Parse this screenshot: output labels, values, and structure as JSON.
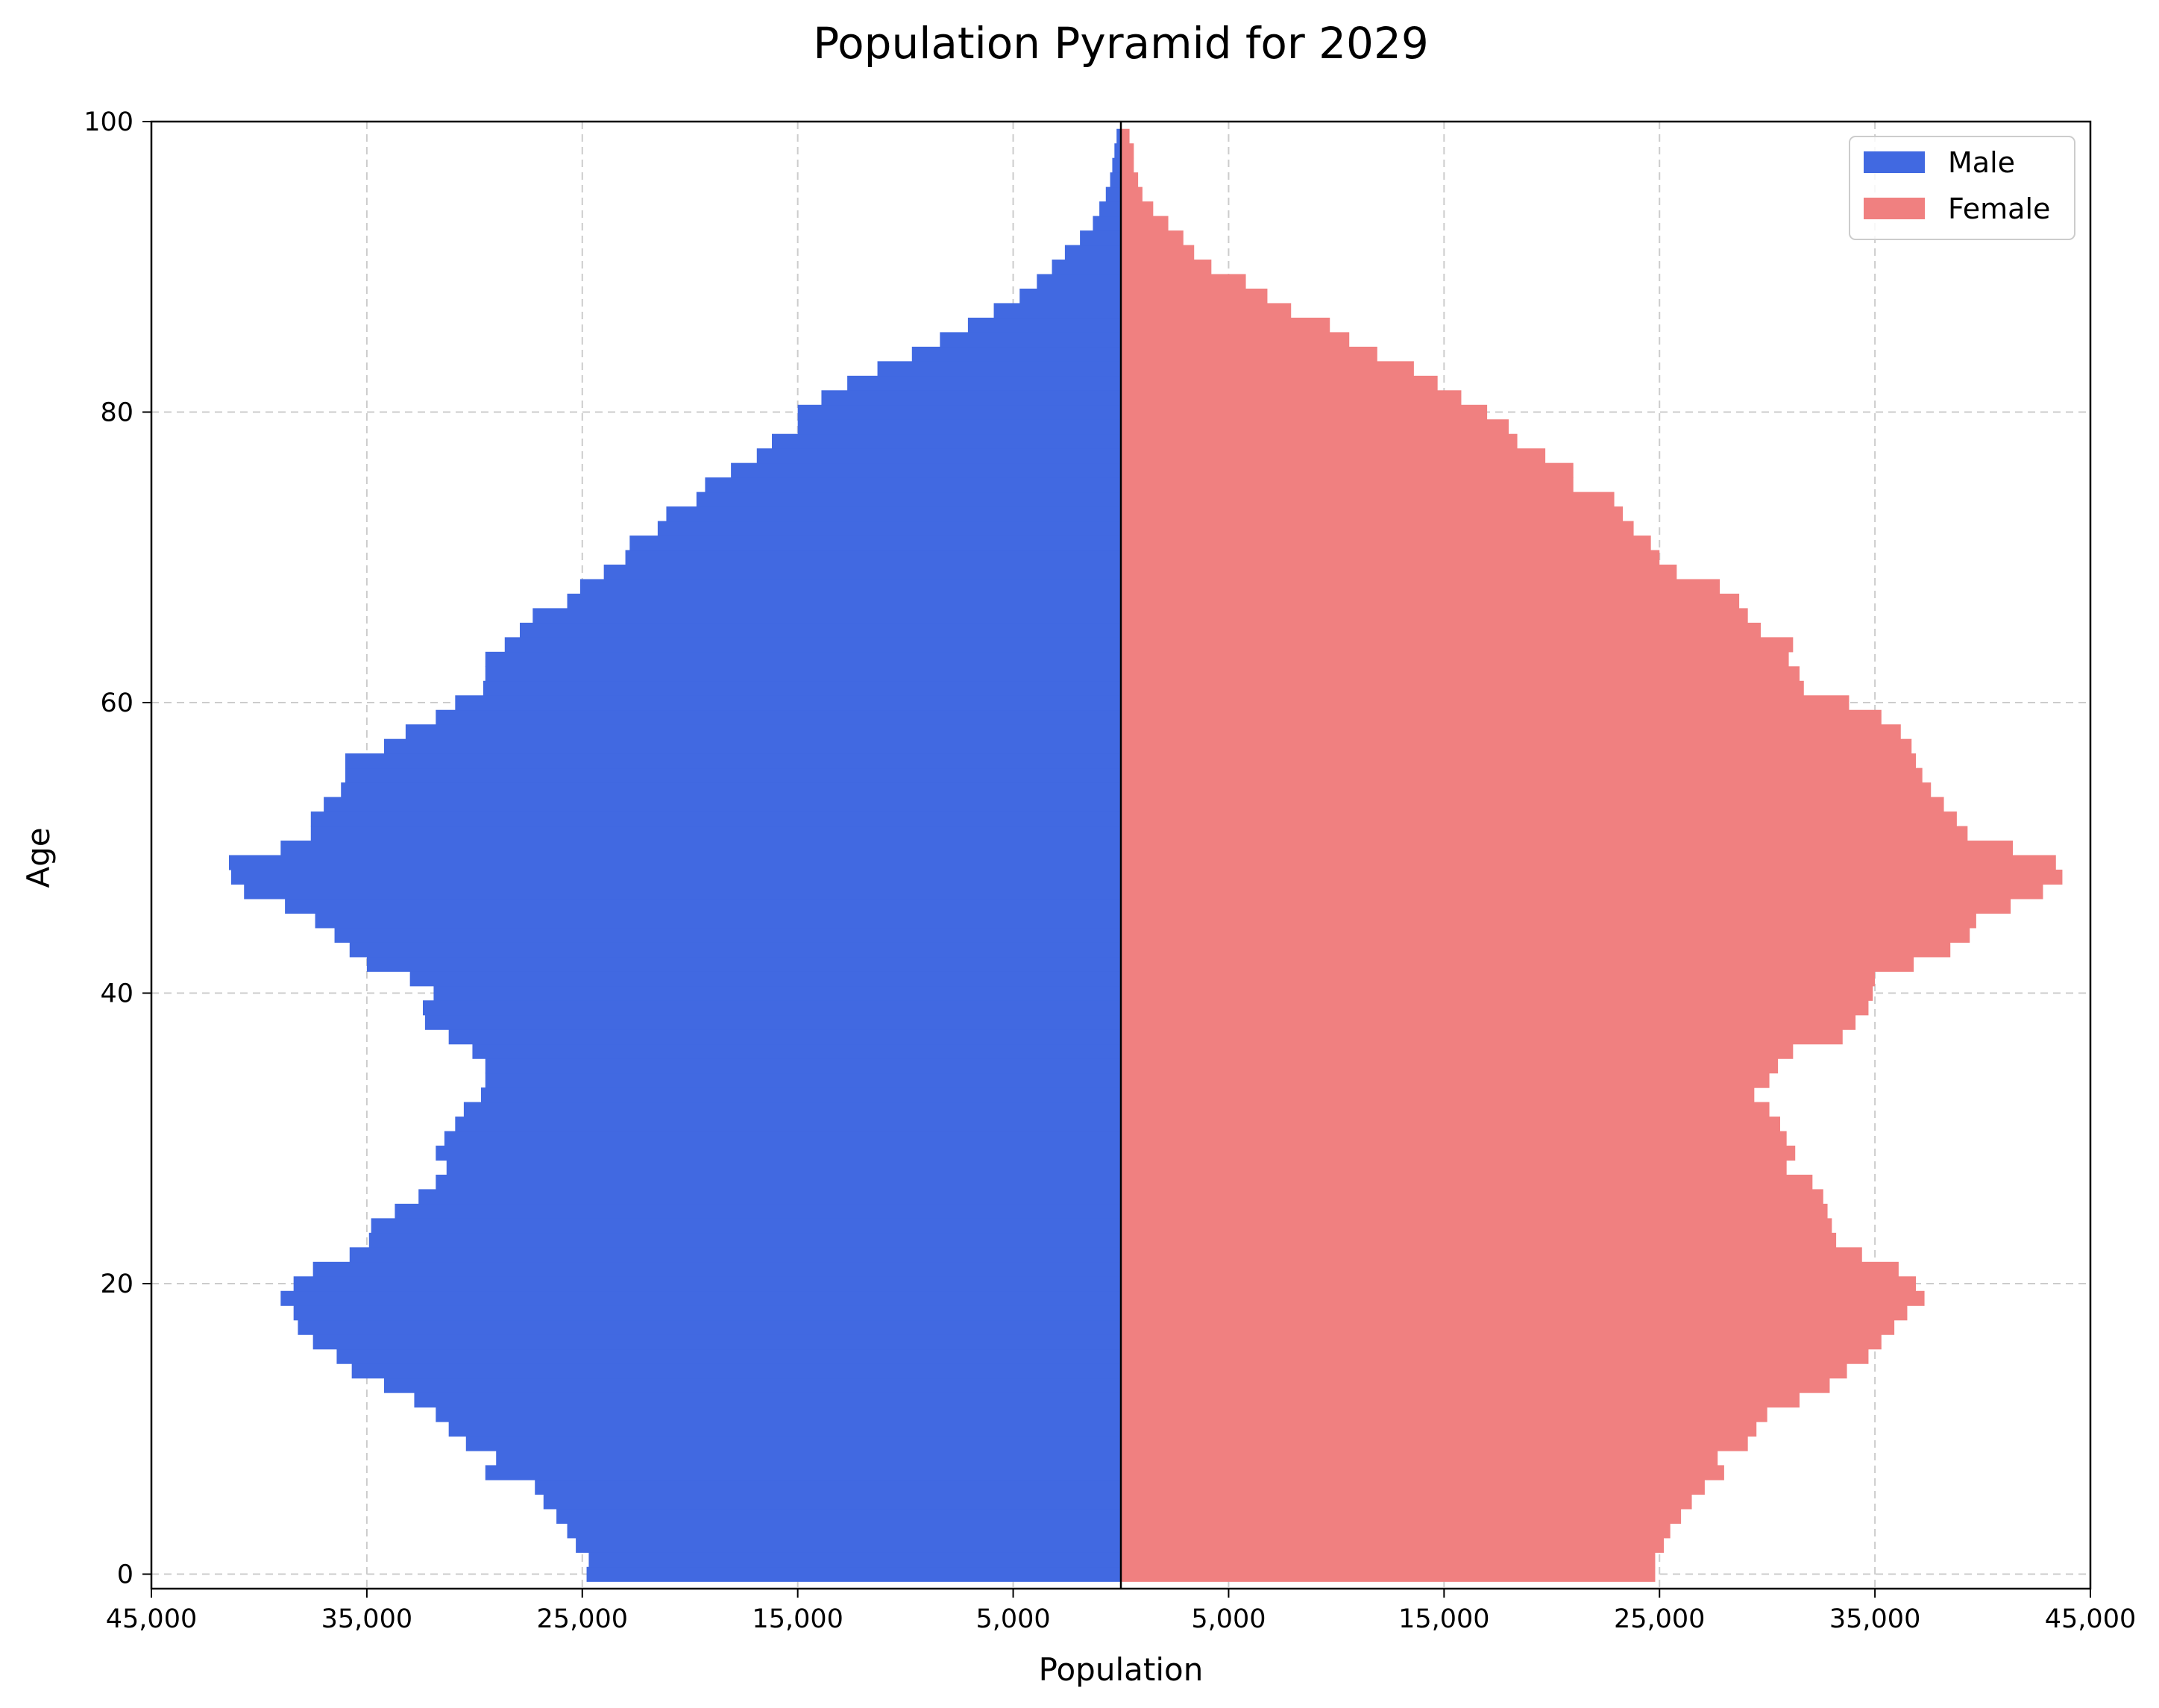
{
  "chart_data": {
    "type": "bar",
    "orientation": "horizontal",
    "title": "Population Pyramid for 2029",
    "xlabel": "Population",
    "ylabel": "Age",
    "xlim": [
      -45000,
      45000
    ],
    "ylim": [
      -1,
      100
    ],
    "x_ticks": [
      -45000,
      -35000,
      -25000,
      -15000,
      -5000,
      5000,
      15000,
      25000,
      35000,
      45000
    ],
    "x_tick_labels": [
      "45,000",
      "35,000",
      "25,000",
      "15,000",
      "5,000",
      "5,000",
      "15,000",
      "25,000",
      "35,000",
      "45,000"
    ],
    "y_ticks": [
      0,
      20,
      40,
      60,
      80,
      100
    ],
    "y_tick_labels": [
      "0",
      "20",
      "40",
      "60",
      "80",
      "100"
    ],
    "grid": true,
    "legend_position": "top-right",
    "ages": [
      0,
      1,
      2,
      3,
      4,
      5,
      6,
      7,
      8,
      9,
      10,
      11,
      12,
      13,
      14,
      15,
      16,
      17,
      18,
      19,
      20,
      21,
      22,
      23,
      24,
      25,
      26,
      27,
      28,
      29,
      30,
      31,
      32,
      33,
      34,
      35,
      36,
      37,
      38,
      39,
      40,
      41,
      42,
      43,
      44,
      45,
      46,
      47,
      48,
      49,
      50,
      51,
      52,
      53,
      54,
      55,
      56,
      57,
      58,
      59,
      60,
      61,
      62,
      63,
      64,
      65,
      66,
      67,
      68,
      69,
      70,
      71,
      72,
      73,
      74,
      75,
      76,
      77,
      78,
      79,
      80,
      81,
      82,
      83,
      84,
      85,
      86,
      87,
      88,
      89,
      90,
      91,
      92,
      93,
      94,
      95,
      96,
      97,
      98,
      99
    ],
    "series": [
      {
        "name": "Male",
        "color": "#4169e1",
        "values": [
          24800,
          24700,
          25300,
          25700,
          26200,
          26800,
          27200,
          29500,
          29000,
          30400,
          31200,
          31800,
          32800,
          34200,
          35700,
          36400,
          37500,
          38200,
          38400,
          39000,
          38400,
          37500,
          35800,
          34900,
          34800,
          33700,
          32600,
          31800,
          31300,
          31800,
          31400,
          30900,
          30500,
          29700,
          29500,
          29500,
          30100,
          31200,
          32300,
          32400,
          31900,
          33000,
          35000,
          35800,
          36500,
          37400,
          38800,
          40700,
          41300,
          41400,
          39000,
          37600,
          37600,
          37000,
          36200,
          36000,
          36000,
          34200,
          33200,
          31800,
          30900,
          29600,
          29500,
          29500,
          28600,
          27900,
          27300,
          25700,
          25100,
          24000,
          23000,
          22800,
          21500,
          21100,
          19700,
          19300,
          18100,
          16900,
          16200,
          15000,
          15000,
          13900,
          12700,
          11300,
          9700,
          8400,
          7100,
          5900,
          4700,
          3900,
          3200,
          2600,
          1900,
          1300,
          1000,
          700,
          500,
          400,
          300,
          200
        ]
      },
      {
        "name": "Female",
        "color": "#f08080",
        "values": [
          24800,
          24800,
          25200,
          25500,
          26000,
          26500,
          27100,
          28000,
          27700,
          29100,
          29500,
          30000,
          31500,
          32900,
          33700,
          34700,
          35300,
          35900,
          36500,
          37300,
          36900,
          36100,
          34400,
          33200,
          33000,
          32800,
          32600,
          32100,
          30900,
          31300,
          30900,
          30600,
          30100,
          29400,
          30100,
          30500,
          31200,
          33500,
          34100,
          34700,
          34900,
          35000,
          36800,
          38500,
          39400,
          39700,
          41300,
          42800,
          43700,
          43400,
          41400,
          39300,
          38800,
          38200,
          37600,
          37200,
          36900,
          36700,
          36200,
          35300,
          33800,
          31700,
          31500,
          31000,
          31200,
          29700,
          29100,
          28700,
          27800,
          25800,
          25000,
          24600,
          23800,
          23300,
          22900,
          21000,
          21000,
          19700,
          18400,
          18000,
          17000,
          15800,
          14700,
          13600,
          11900,
          10600,
          9700,
          7900,
          6800,
          5800,
          4200,
          3400,
          2900,
          2200,
          1500,
          1000,
          800,
          600,
          600,
          400
        ]
      }
    ]
  }
}
